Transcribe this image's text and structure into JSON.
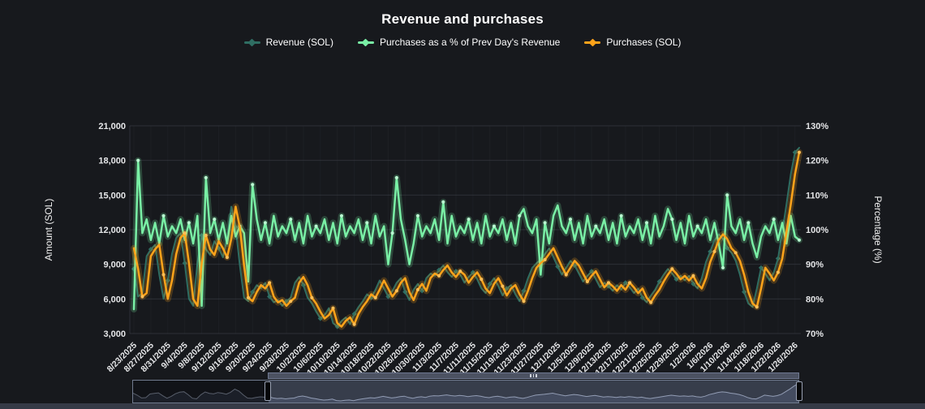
{
  "title": "Revenue and purchases",
  "legend": [
    {
      "label": "Revenue (SOL)",
      "color": "#2f6e63"
    },
    {
      "label": "Purchases as a % of Prev Day's Revenue",
      "color": "#79efa5"
    },
    {
      "label": "Purchases (SOL)",
      "color": "#ffa31a"
    }
  ],
  "colors": {
    "background": "#17191d",
    "revenue": "#2f6e63",
    "percentage": "#79efa5",
    "purchases": "#ffa31a",
    "gridline": "#3f434b",
    "tick_text": "#e6e7e9"
  },
  "chart_data": {
    "type": "line",
    "title": "Revenue and purchases",
    "date_range_visible": [
      "8/23/2025",
      "1/26/2026"
    ],
    "x_tick_interval_days": 4,
    "x_tick_labels": [
      "8/23/2025",
      "8/27/2025",
      "8/31/2025",
      "9/4/2025",
      "9/8/2025",
      "9/12/2025",
      "9/16/2025",
      "9/20/2025",
      "9/24/2025",
      "9/28/2025",
      "10/2/2025",
      "10/6/2025",
      "10/10/2025",
      "10/14/2025",
      "10/18/2025",
      "10/22/2025",
      "10/26/2025",
      "10/30/2025",
      "11/3/2025",
      "11/7/2025",
      "11/11/2025",
      "11/15/2025",
      "11/19/2025",
      "11/23/2025",
      "11/27/2025",
      "12/1/2025",
      "12/5/2025",
      "12/9/2025",
      "12/13/2025",
      "12/17/2025",
      "12/21/2025",
      "12/25/2025",
      "12/29/2025",
      "1/2/2026",
      "1/6/2026",
      "1/10/2026",
      "1/14/2026",
      "1/18/2026",
      "1/22/2026",
      "1/26/2026"
    ],
    "left_axis": {
      "label": "Amount (SOL)",
      "range": [
        3000,
        21000
      ],
      "tick_step": 3000,
      "tick_labels": [
        "3,000",
        "6,000",
        "9,000",
        "12,000",
        "15,000",
        "18,000",
        "21,000"
      ]
    },
    "right_axis": {
      "label": "Percentage (%)",
      "range": [
        70,
        130
      ],
      "tick_step": 10,
      "tick_labels": [
        "70%",
        "80%",
        "90%",
        "100%",
        "110%",
        "120%",
        "130%"
      ]
    },
    "grid": "horizontal",
    "legend_position": "top",
    "series": [
      {
        "name": "Revenue (SOL)",
        "axis": "left",
        "color": "#2f6e63",
        "marker": "diamond",
        "glow": false,
        "values": [
          8600,
          6200,
          6500,
          9700,
          10300,
          10700,
          8100,
          6000,
          7600,
          9900,
          11300,
          11700,
          9100,
          6000,
          5400,
          9100,
          11500,
          10300,
          9800,
          11000,
          10400,
          9600,
          11200,
          14000,
          12200,
          8900,
          6100,
          5800,
          6600,
          7200,
          6900,
          7400,
          6200,
          5700,
          5900,
          5400,
          5800,
          6100,
          7400,
          7900,
          7200,
          6100,
          5600,
          4900,
          4300,
          4600,
          5200,
          3900,
          3600,
          4100,
          4400,
          3800,
          4700,
          5300,
          5800,
          6400,
          6100,
          6800,
          7600,
          6900,
          6200,
          6700,
          7400,
          7800,
          6600,
          5900,
          6800,
          7300,
          6700,
          7800,
          8200,
          8000,
          8500,
          8900,
          8300,
          7900,
          8400,
          8100,
          7400,
          7900,
          8300,
          7700,
          6900,
          6500,
          7300,
          7800,
          7100,
          6300,
          6900,
          7200,
          6400,
          5800,
          6700,
          7800,
          8700,
          9100,
          9400,
          9900,
          10400,
          9600,
          8800,
          8100,
          8700,
          9300,
          8900,
          8200,
          7500,
          8000,
          8400,
          7700,
          7000,
          7400,
          7100,
          6700,
          7200,
          6800,
          7400,
          7000,
          6500,
          6900,
          6100,
          5700,
          6300,
          6800,
          7500,
          8100,
          8600,
          8200,
          7700,
          8000,
          7600,
          8000,
          7300,
          6900,
          7800,
          9200,
          10100,
          11100,
          11600,
          11200,
          10400,
          10000,
          9300,
          8100,
          6600,
          5600,
          5300,
          6900,
          8700,
          8200,
          7600,
          8300,
          9500,
          11800,
          14200,
          16800,
          18700,
          19100
        ]
      },
      {
        "name": "Purchases as a % of Prev Day's Revenue",
        "axis": "right",
        "color": "#79efa5",
        "marker": "circle",
        "glow": true,
        "values": [
          77,
          120,
          99,
          103,
          97,
          102,
          96,
          104,
          98,
          101,
          99,
          103,
          97,
          102,
          96,
          104,
          78,
          115,
          99,
          103,
          97,
          102,
          96,
          104,
          98,
          101,
          99,
          85,
          113,
          103,
          97,
          102,
          96,
          104,
          98,
          101,
          99,
          103,
          97,
          102,
          96,
          104,
          98,
          101,
          99,
          103,
          97,
          102,
          96,
          104,
          98,
          101,
          99,
          103,
          97,
          102,
          96,
          104,
          98,
          101,
          90,
          99,
          115,
          103,
          97,
          90,
          96,
          104,
          98,
          101,
          99,
          103,
          97,
          108,
          96,
          104,
          98,
          101,
          99,
          103,
          97,
          102,
          96,
          104,
          98,
          101,
          99,
          103,
          97,
          102,
          96,
          104,
          106,
          101,
          99,
          103,
          87,
          102,
          96,
          104,
          107,
          101,
          99,
          103,
          97,
          102,
          96,
          104,
          98,
          101,
          99,
          103,
          97,
          102,
          96,
          104,
          98,
          101,
          99,
          103,
          97,
          102,
          96,
          104,
          98,
          101,
          106,
          103,
          97,
          102,
          96,
          104,
          98,
          101,
          99,
          103,
          97,
          102,
          96,
          89,
          110,
          101,
          99,
          103,
          97,
          102,
          96,
          92,
          98,
          101,
          99,
          103,
          97,
          102,
          96,
          104,
          98,
          97
        ]
      },
      {
        "name": "Purchases (SOL)",
        "axis": "left",
        "color": "#ffa31a",
        "marker": "circle",
        "glow": true,
        "values": [
          10400,
          8600,
          6200,
          6500,
          9700,
          10300,
          10700,
          8100,
          6000,
          7600,
          9900,
          11300,
          11700,
          9100,
          6000,
          5400,
          9100,
          11500,
          10300,
          9800,
          11000,
          10400,
          9600,
          11200,
          14000,
          12200,
          8900,
          6100,
          5800,
          6600,
          7200,
          6900,
          7400,
          6200,
          5700,
          5900,
          5400,
          5800,
          6100,
          7400,
          7900,
          7200,
          6100,
          5600,
          4900,
          4300,
          4600,
          5200,
          3900,
          3600,
          4100,
          4400,
          3800,
          4700,
          5300,
          5800,
          6400,
          6100,
          6800,
          7600,
          6900,
          6200,
          6700,
          7400,
          7800,
          6600,
          5900,
          6800,
          7300,
          6700,
          7800,
          8200,
          8000,
          8500,
          8900,
          8300,
          7900,
          8400,
          8100,
          7400,
          7900,
          8300,
          7700,
          6900,
          6500,
          7300,
          7800,
          7100,
          6300,
          6900,
          7200,
          6400,
          5800,
          6700,
          7800,
          8700,
          9100,
          9400,
          9900,
          10400,
          9600,
          8800,
          8100,
          8700,
          9300,
          8900,
          8200,
          7500,
          8000,
          8400,
          7700,
          7000,
          7400,
          7100,
          6700,
          7200,
          6800,
          7400,
          7000,
          6500,
          6900,
          6100,
          5700,
          6300,
          6800,
          7500,
          8100,
          8600,
          8200,
          7700,
          8000,
          7600,
          8000,
          7300,
          6900,
          7800,
          9200,
          10100,
          11100,
          11600,
          11200,
          10400,
          10000,
          9300,
          8100,
          6600,
          5600,
          5300,
          6900,
          8700,
          8200,
          7600,
          8300,
          9500,
          11800,
          14200,
          16800,
          18700
        ]
      }
    ]
  },
  "navigator": {
    "selected_range_start_frac": 0.2,
    "selected_range_end_frac": 1.0
  }
}
